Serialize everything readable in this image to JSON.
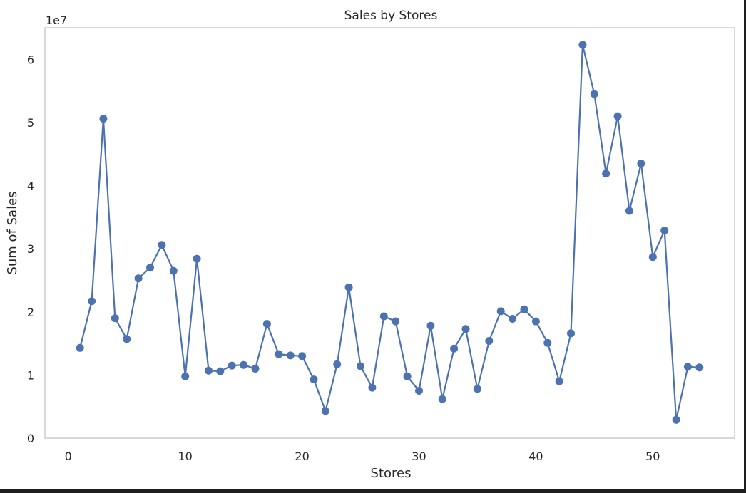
{
  "chart_data": {
    "type": "line",
    "title": "Sales by Stores",
    "xlabel": "Stores",
    "ylabel": "Sum of Sales",
    "y_offset_label": "1e7",
    "xlim": [
      -2,
      57
    ],
    "ylim": [
      0,
      6.5
    ],
    "x_ticks": [
      0,
      10,
      20,
      30,
      40,
      50
    ],
    "y_ticks": [
      0,
      1,
      2,
      3,
      4,
      5,
      6
    ],
    "grid": false,
    "line_color": "#4c72b0",
    "series": [
      {
        "x": [
          1,
          2,
          3,
          4,
          5,
          6,
          7,
          8,
          9,
          10,
          11,
          12,
          13,
          14,
          15,
          16,
          17,
          18,
          19,
          20,
          21,
          22,
          23,
          24,
          25,
          26,
          27,
          28,
          29,
          30,
          31,
          32,
          33,
          34,
          35,
          36,
          37,
          38,
          39,
          40,
          41,
          42,
          43,
          44,
          45,
          46,
          47,
          48,
          49,
          50,
          51,
          52,
          53,
          54
        ],
        "values": [
          1.43,
          2.17,
          5.06,
          1.9,
          1.57,
          2.53,
          2.7,
          3.06,
          2.65,
          0.98,
          2.84,
          1.07,
          1.06,
          1.15,
          1.16,
          1.1,
          1.81,
          1.33,
          1.31,
          1.3,
          0.93,
          0.43,
          1.17,
          2.39,
          1.14,
          0.8,
          1.93,
          1.85,
          0.98,
          0.75,
          1.78,
          0.62,
          1.42,
          1.73,
          0.78,
          1.54,
          2.01,
          1.89,
          2.04,
          1.85,
          1.51,
          0.9,
          1.66,
          6.23,
          5.45,
          4.19,
          5.1,
          3.6,
          4.35,
          2.87,
          3.29,
          0.29,
          1.13,
          1.12
        ]
      }
    ]
  }
}
